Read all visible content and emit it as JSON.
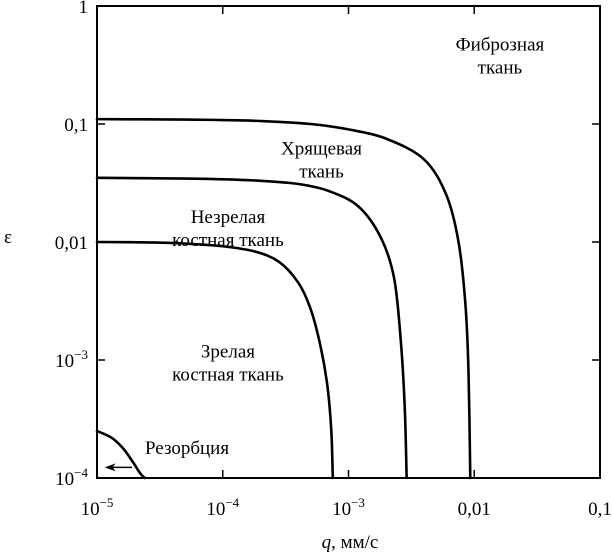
{
  "chart_data": {
    "type": "line",
    "title": "",
    "xlabel_var": "q",
    "xlabel_unit": ", мм/с",
    "ylabel": "ε",
    "x_scale": "log",
    "y_scale": "log",
    "xlim": [
      1e-05,
      0.1
    ],
    "ylim": [
      0.0001,
      1
    ],
    "grid": false,
    "x_ticks": [
      {
        "value": 1e-05,
        "base": "10",
        "exp": "−5"
      },
      {
        "value": 0.0001,
        "base": "10",
        "exp": "−4"
      },
      {
        "value": 0.001,
        "base": "10",
        "exp": "−3"
      },
      {
        "value": 0.01,
        "base": "0,01",
        "exp": ""
      },
      {
        "value": 0.1,
        "base": "0,1",
        "exp": ""
      }
    ],
    "y_ticks": [
      {
        "value": 0.0001,
        "base": "10",
        "exp": "−4"
      },
      {
        "value": 0.001,
        "base": "10",
        "exp": "−3"
      },
      {
        "value": 0.01,
        "base": "0,01",
        "exp": ""
      },
      {
        "value": 0.1,
        "base": "0,1",
        "exp": ""
      },
      {
        "value": 1,
        "base": "1",
        "exp": ""
      }
    ],
    "series": [
      {
        "x": [
          1e-05,
          5e-05,
          0.0001,
          0.0002,
          0.0005,
          0.001,
          0.002,
          0.004,
          0.006,
          0.0075,
          0.0085,
          0.009,
          0.0093
        ],
        "y": [
          0.11,
          0.109,
          0.108,
          0.106,
          0.1,
          0.09,
          0.075,
          0.05,
          0.025,
          0.01,
          0.003,
          0.0008,
          0.0001
        ]
      },
      {
        "x": [
          1e-05,
          5e-05,
          0.0001,
          0.0002,
          0.0004,
          0.0007,
          0.0012,
          0.0018,
          0.0023,
          0.0026,
          0.0028,
          0.0029
        ],
        "y": [
          0.035,
          0.0345,
          0.034,
          0.033,
          0.031,
          0.027,
          0.02,
          0.011,
          0.005,
          0.0015,
          0.0004,
          0.0001
        ]
      },
      {
        "x": [
          1e-05,
          3e-05,
          5e-05,
          0.0001,
          0.00018,
          0.00028,
          0.0004,
          0.0005,
          0.0006,
          0.00068,
          0.00073,
          0.00075
        ],
        "y": [
          0.01,
          0.0099,
          0.0097,
          0.0092,
          0.0083,
          0.0068,
          0.0045,
          0.0027,
          0.0013,
          0.0006,
          0.00025,
          0.0001
        ]
      },
      {
        "x": [
          1e-05,
          1.3e-05,
          1.6e-05,
          1.9e-05,
          2.2e-05,
          2.4e-05
        ],
        "y": [
          0.00025,
          0.00022,
          0.00018,
          0.00014,
          0.00011,
          0.0001
        ]
      }
    ],
    "annotations": [
      {
        "lines": [
          "Фиброзная",
          "ткань"
        ],
        "x": 0.016,
        "y": 0.42
      },
      {
        "lines": [
          "Хрящевая",
          "ткань"
        ],
        "x": 0.00061,
        "y": 0.055
      },
      {
        "lines": [
          "Незрелая",
          "костная ткань"
        ],
        "x": 0.00011,
        "y": 0.0145
      },
      {
        "lines": [
          "Зрелая",
          "костная ткань"
        ],
        "x": 0.00011,
        "y": 0.00105
      },
      {
        "lines": [
          "Резорбция"
        ],
        "x": 5.2e-05,
        "y": 0.00016
      }
    ],
    "arrow": {
      "from": [
        1.9e-05,
        0.000123
      ],
      "to": [
        1.15e-05,
        0.000123
      ]
    }
  }
}
